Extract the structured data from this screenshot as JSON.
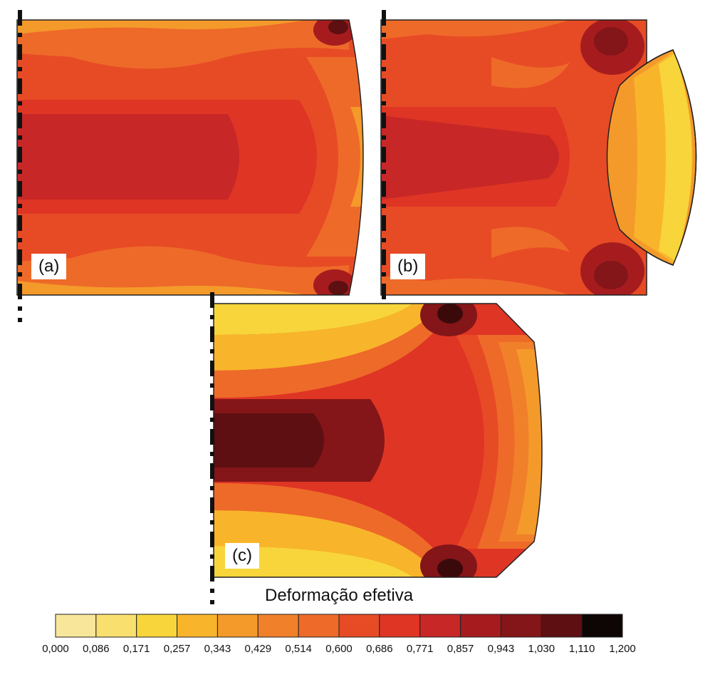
{
  "panels": [
    {
      "label": "(a)"
    },
    {
      "label": "(b)"
    },
    {
      "label": "(c)"
    }
  ],
  "colorbar": {
    "title": "Deformação efetiva",
    "ticks": [
      "0,000",
      "0,086",
      "0,171",
      "0,257",
      "0,343",
      "0,429",
      "0,514",
      "0,600",
      "0,686",
      "0,771",
      "0,857",
      "0,943",
      "1,030",
      "1,110",
      "1,200"
    ],
    "colors": [
      "#f8e79a",
      "#f9df6e",
      "#f8d53a",
      "#f8b52b",
      "#f49a2a",
      "#f1802a",
      "#ee6a29",
      "#e74b25",
      "#df3525",
      "#c82727",
      "#a61c1e",
      "#841518",
      "#5d0f11",
      "#3a0a0b",
      "#0e0505"
    ]
  },
  "palette": {
    "outline": "#222222",
    "axis_dash": "#111111"
  }
}
